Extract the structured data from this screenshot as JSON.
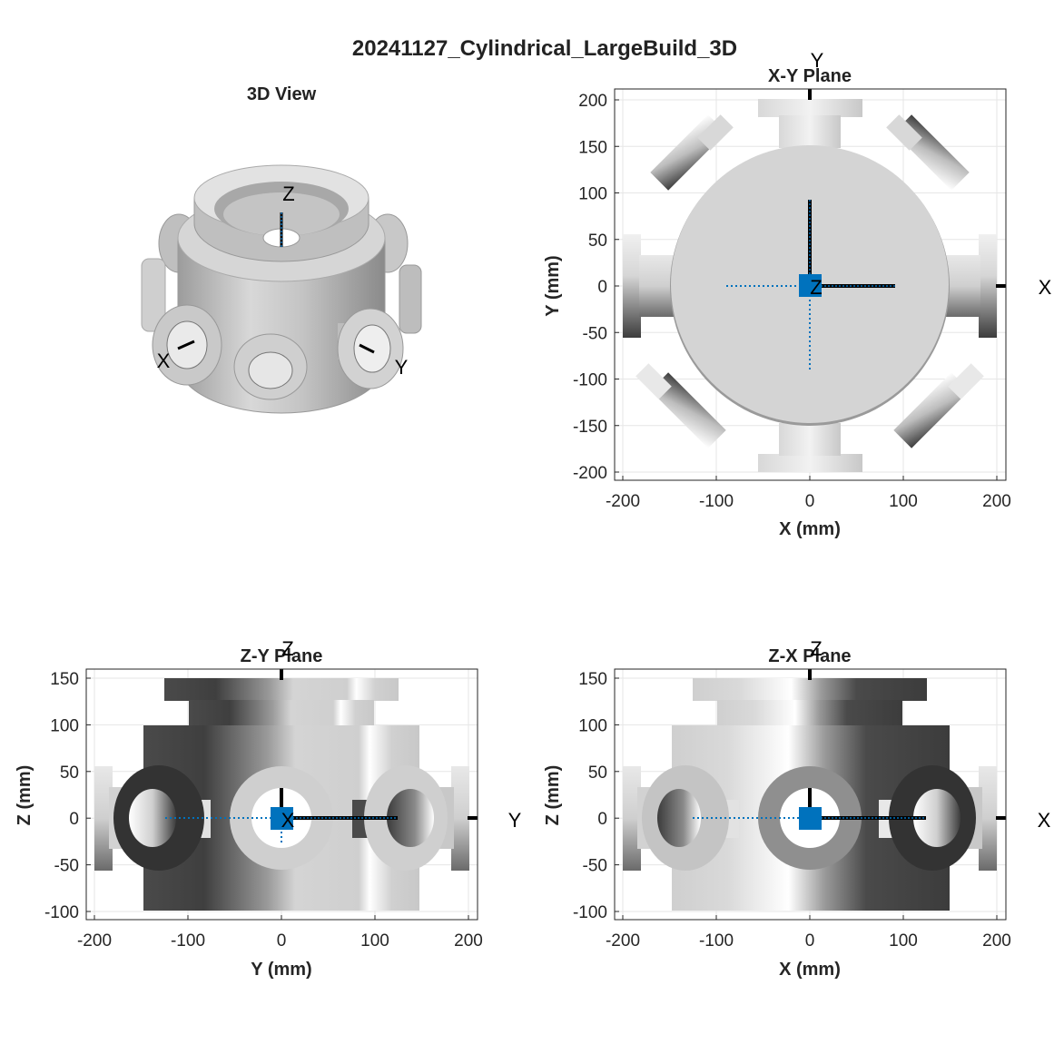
{
  "figure_title": "20241127_Cylindrical_LargeBuild_3D",
  "panels": {
    "view3d": {
      "title": "3D View",
      "axis_labels": {
        "x": "X",
        "y": "Y",
        "z": "Z"
      }
    },
    "xy": {
      "title": "X-Y Plane",
      "xlabel": "X (mm)",
      "ylabel": "Y (mm)",
      "xticks": [
        "-200",
        "-100",
        "0",
        "100",
        "200"
      ],
      "yticks": [
        "200",
        "150",
        "100",
        "50",
        "0",
        "-50",
        "-100",
        "-150",
        "-200"
      ],
      "axis_labels": {
        "x": "X",
        "y": "Y",
        "z": "Z"
      }
    },
    "zy": {
      "title": "Z-Y Plane",
      "xlabel": "Y (mm)",
      "ylabel": "Z (mm)",
      "xticks": [
        "-200",
        "-100",
        "0",
        "100",
        "200"
      ],
      "yticks": [
        "150",
        "100",
        "50",
        "0",
        "-50",
        "-100"
      ],
      "axis_labels": {
        "h": "Y",
        "v": "Z",
        "center": "X"
      }
    },
    "zx": {
      "title": "Z-X Plane",
      "xlabel": "X (mm)",
      "ylabel": "Z (mm)",
      "xticks": [
        "-200",
        "-100",
        "0",
        "100",
        "200"
      ],
      "yticks": [
        "150",
        "100",
        "50",
        "0",
        "-50",
        "-100"
      ],
      "axis_labels": {
        "h": "X",
        "v": "Z"
      }
    }
  },
  "colors": {
    "marker": "#0072bd",
    "axis_line": "#000000",
    "grid": "#e6e6e6",
    "body_light": "#d2d2d2",
    "body_dark": "#3c3c3c"
  }
}
